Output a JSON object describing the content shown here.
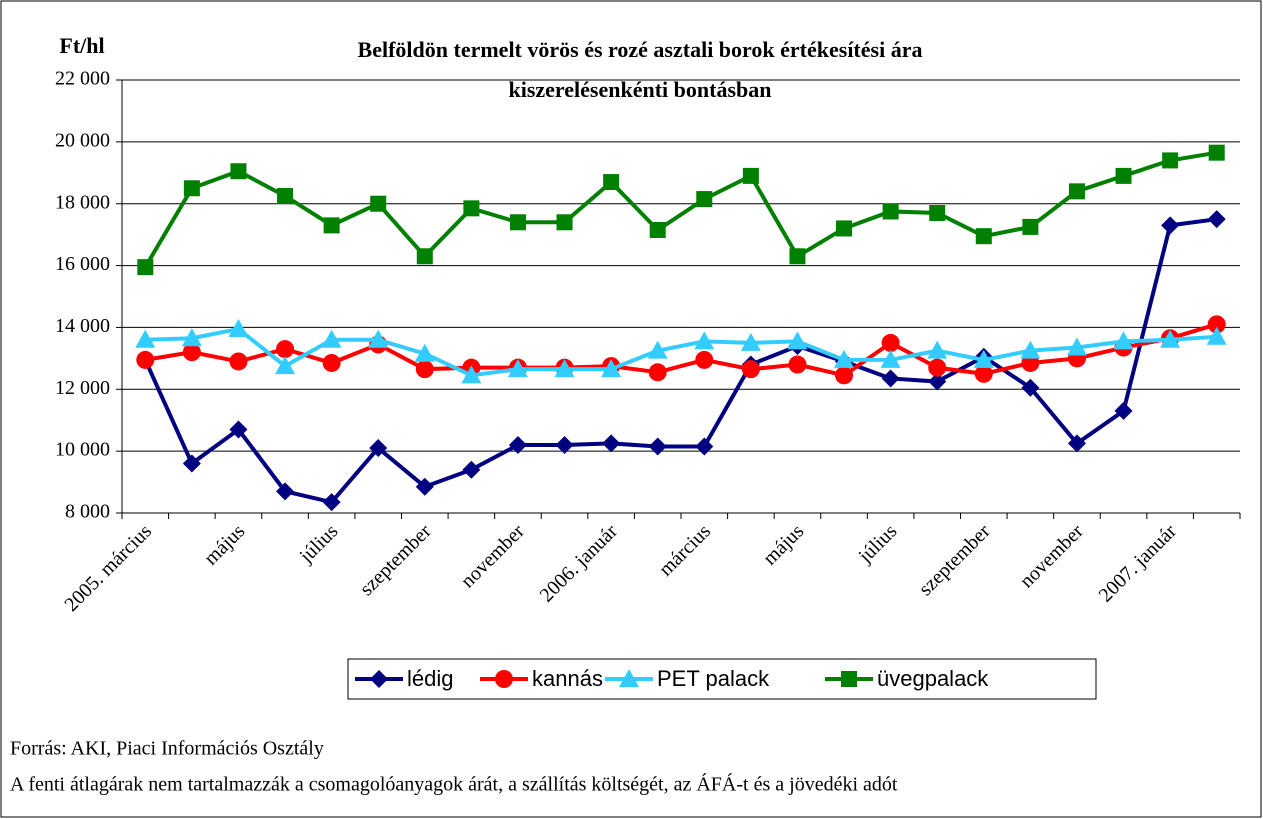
{
  "chart_data": {
    "type": "line",
    "title": [
      "Belföldön termelt vörös és rozé asztali borok értékesítési ára",
      "kiszerelésenkénti bontásban"
    ],
    "y_label": "Ft/hl",
    "categories": [
      "2005. március",
      null,
      "május",
      null,
      "július",
      null,
      "szeptember",
      null,
      "november",
      null,
      "2006. január",
      null,
      "március",
      null,
      "május",
      null,
      "július",
      null,
      "szeptember",
      null,
      "november",
      null,
      "2007. január",
      null
    ],
    "series": [
      {
        "name": "lédig",
        "color": "#000080",
        "marker": "diamond",
        "values": [
          12950,
          9600,
          10700,
          8700,
          8350,
          10100,
          8850,
          9400,
          10200,
          10200,
          10250,
          10150,
          10150,
          12800,
          13400,
          12900,
          12350,
          12250,
          13050,
          12050,
          10250,
          11300,
          17300,
          17500
        ]
      },
      {
        "name": "kannás",
        "color": "#ff0000",
        "marker": "circle",
        "values": [
          12950,
          13200,
          12900,
          13300,
          12850,
          13450,
          12650,
          12700,
          12700,
          12700,
          12750,
          12550,
          12950,
          12650,
          12800,
          12450,
          13500,
          12700,
          12500,
          12850,
          13000,
          13350,
          13650,
          14100
        ]
      },
      {
        "name": "PET palack",
        "color": "#33ccff",
        "marker": "triangle",
        "values": [
          13600,
          13650,
          13950,
          12750,
          13600,
          13600,
          13150,
          12450,
          12650,
          12650,
          12650,
          13250,
          13550,
          13500,
          13550,
          12950,
          12950,
          13250,
          12950,
          13250,
          13350,
          13550,
          13600,
          13700
        ]
      },
      {
        "name": "üvegpalack",
        "color": "#008000",
        "marker": "square",
        "values": [
          15950,
          18500,
          19050,
          18250,
          17300,
          18000,
          16300,
          17850,
          17400,
          17400,
          18700,
          17150,
          18150,
          18900,
          16300,
          17200,
          17750,
          17700,
          16950,
          17250,
          18400,
          18900,
          19400,
          19650
        ]
      }
    ],
    "ylim": [
      8000,
      22000
    ],
    "yticks": [
      {
        "value": 8000,
        "label": "8 000"
      },
      {
        "value": 10000,
        "label": "10 000"
      },
      {
        "value": 12000,
        "label": "12 000"
      },
      {
        "value": 14000,
        "label": "14 000"
      },
      {
        "value": 16000,
        "label": "16 000"
      },
      {
        "value": 18000,
        "label": "18 000"
      },
      {
        "value": 20000,
        "label": "20 000"
      },
      {
        "value": 22000,
        "label": "22 000"
      }
    ],
    "grid": true,
    "legend": "bottom",
    "notes": [
      "Forrás: AKI, Piaci Információs Osztály",
      "A fenti átlagárak nem tartalmazzák a csomagolóanyagok árát, a szállítás költségét, az ÁFÁ-t és a jövedéki adót"
    ]
  }
}
